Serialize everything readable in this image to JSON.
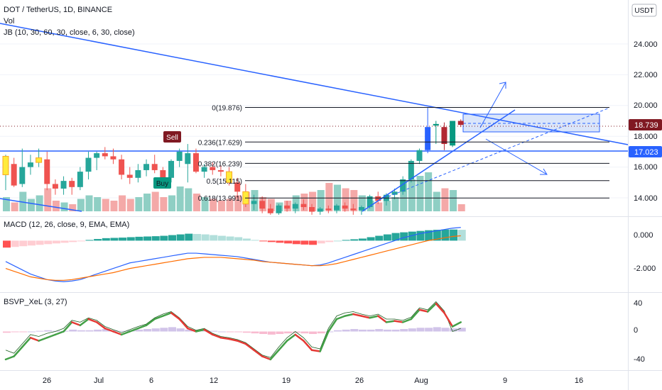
{
  "header": {
    "symbol_line": "DOT / TetherUS, 1D, BINANCE",
    "vol_label": "Vol",
    "indicator_label": "JB (10, 30, 60, 30, close, 6, 30, close)",
    "currency_button": "USDT"
  },
  "colors": {
    "up": "#26a69a",
    "down": "#ef5350",
    "up_bright": "#089981",
    "down_dark": "#b22833",
    "trend": "#2962ff",
    "macd_line": "#2962ff",
    "signal_line": "#ff6d00",
    "bsvp_green": "#43a047",
    "bsvp_red": "#e53935",
    "bsvp_thin": "#1b5e20",
    "fib": "#131722",
    "box_fill": "#bbd0f5",
    "price_label_bg": "#801922",
    "level_label_bg": "#2962ff"
  },
  "price_axis": {
    "ticks": [
      "24.000",
      "22.000",
      "20.000",
      "18.000",
      "16.000",
      "14.000"
    ],
    "current_price": "18.739",
    "level_price": "17.023"
  },
  "macd_pane": {
    "label": "MACD (12, 26, close, 9, EMA, EMA)",
    "ticks": [
      "0.000",
      "-2.000"
    ]
  },
  "bsvp_pane": {
    "label": "BSVP_XeL (3, 27)",
    "ticks": [
      "40",
      "0",
      "-40"
    ]
  },
  "time_axis": {
    "labels": [
      "26",
      "Jul",
      "6",
      "12",
      "19",
      "26",
      "Aug",
      "9",
      "16"
    ]
  },
  "fib_levels": [
    {
      "label": "0(19.876)",
      "price": 19.876
    },
    {
      "label": "0.236(17.629)",
      "price": 17.629
    },
    {
      "label": "0.382(16.239)",
      "price": 16.239
    },
    {
      "label": "0.5(15.115)",
      "price": 15.115
    },
    {
      "label": "0.618(13.991)",
      "price": 13.991
    }
  ],
  "signals": {
    "sell": "Sell",
    "buy": "Buy"
  },
  "chart_data": {
    "type": "candlestick",
    "price_range": [
      12.8,
      25.6
    ],
    "candles": [
      {
        "o": 15.5,
        "h": 16.8,
        "l": 14.5,
        "c": 16.7
      },
      {
        "o": 16.2,
        "h": 16.6,
        "l": 14.7,
        "c": 14.8
      },
      {
        "o": 14.9,
        "h": 17.2,
        "l": 14.7,
        "c": 16.0
      },
      {
        "o": 16.0,
        "h": 16.8,
        "l": 15.5,
        "c": 16.3
      },
      {
        "o": 16.3,
        "h": 17.2,
        "l": 16.0,
        "c": 16.6
      },
      {
        "o": 16.5,
        "h": 17.0,
        "l": 14.5,
        "c": 14.9
      },
      {
        "o": 14.9,
        "h": 15.2,
        "l": 14.2,
        "c": 14.6
      },
      {
        "o": 14.6,
        "h": 15.4,
        "l": 14.2,
        "c": 15.1
      },
      {
        "o": 15.1,
        "h": 15.3,
        "l": 14.2,
        "c": 14.7
      },
      {
        "o": 14.7,
        "h": 16.0,
        "l": 14.5,
        "c": 15.7
      },
      {
        "o": 15.7,
        "h": 17.0,
        "l": 15.2,
        "c": 16.6
      },
      {
        "o": 16.6,
        "h": 17.0,
        "l": 15.8,
        "c": 16.9
      },
      {
        "o": 16.9,
        "h": 17.3,
        "l": 16.5,
        "c": 16.7
      },
      {
        "o": 16.7,
        "h": 17.2,
        "l": 16.2,
        "c": 16.5
      },
      {
        "o": 16.5,
        "h": 16.8,
        "l": 15.2,
        "c": 15.5
      },
      {
        "o": 15.5,
        "h": 16.0,
        "l": 14.9,
        "c": 15.3
      },
      {
        "o": 15.3,
        "h": 16.2,
        "l": 15.0,
        "c": 15.8
      },
      {
        "o": 15.8,
        "h": 16.5,
        "l": 15.4,
        "c": 16.2
      },
      {
        "o": 16.2,
        "h": 16.8,
        "l": 15.6,
        "c": 15.8
      },
      {
        "o": 15.8,
        "h": 16.0,
        "l": 15.0,
        "c": 15.3
      },
      {
        "o": 15.3,
        "h": 16.5,
        "l": 15.0,
        "c": 16.4
      },
      {
        "o": 16.4,
        "h": 17.2,
        "l": 16.0,
        "c": 17.0
      },
      {
        "o": 16.2,
        "h": 17.5,
        "l": 15.0,
        "c": 16.9
      },
      {
        "o": 16.9,
        "h": 17.2,
        "l": 15.6,
        "c": 15.7
      },
      {
        "o": 15.7,
        "h": 16.2,
        "l": 15.3,
        "c": 16.0
      },
      {
        "o": 16.0,
        "h": 16.3,
        "l": 15.5,
        "c": 15.8
      },
      {
        "o": 15.8,
        "h": 16.1,
        "l": 15.4,
        "c": 15.7
      },
      {
        "o": 15.7,
        "h": 16.0,
        "l": 14.8,
        "c": 15.0
      },
      {
        "o": 15.0,
        "h": 15.3,
        "l": 14.0,
        "c": 14.4
      },
      {
        "o": 14.4,
        "h": 14.9,
        "l": 13.4,
        "c": 13.6
      },
      {
        "o": 13.6,
        "h": 14.2,
        "l": 13.2,
        "c": 13.8
      },
      {
        "o": 13.8,
        "h": 14.1,
        "l": 13.0,
        "c": 13.3
      },
      {
        "o": 13.3,
        "h": 13.6,
        "l": 12.9,
        "c": 13.0
      },
      {
        "o": 13.0,
        "h": 13.6,
        "l": 12.9,
        "c": 13.5
      },
      {
        "o": 13.5,
        "h": 13.8,
        "l": 13.1,
        "c": 13.3
      },
      {
        "o": 13.3,
        "h": 13.7,
        "l": 13.0,
        "c": 13.6
      },
      {
        "o": 13.6,
        "h": 13.9,
        "l": 13.2,
        "c": 13.4
      },
      {
        "o": 13.4,
        "h": 13.6,
        "l": 12.9,
        "c": 13.1
      },
      {
        "o": 13.1,
        "h": 13.4,
        "l": 12.9,
        "c": 13.3
      },
      {
        "o": 13.3,
        "h": 13.5,
        "l": 13.0,
        "c": 13.2
      },
      {
        "o": 13.2,
        "h": 13.6,
        "l": 13.0,
        "c": 13.5
      },
      {
        "o": 13.5,
        "h": 13.7,
        "l": 13.1,
        "c": 13.3
      },
      {
        "o": 13.3,
        "h": 13.6,
        "l": 12.9,
        "c": 13.2
      },
      {
        "o": 13.2,
        "h": 13.5,
        "l": 12.9,
        "c": 13.4
      },
      {
        "o": 13.4,
        "h": 14.2,
        "l": 13.3,
        "c": 14.1
      },
      {
        "o": 14.1,
        "h": 14.4,
        "l": 13.6,
        "c": 13.8
      },
      {
        "o": 13.8,
        "h": 14.3,
        "l": 13.5,
        "c": 14.2
      },
      {
        "o": 14.2,
        "h": 14.6,
        "l": 13.9,
        "c": 14.4
      },
      {
        "o": 14.4,
        "h": 15.4,
        "l": 14.2,
        "c": 15.2
      },
      {
        "o": 15.2,
        "h": 16.5,
        "l": 15.0,
        "c": 16.4
      },
      {
        "o": 16.4,
        "h": 17.2,
        "l": 16.2,
        "c": 17.1
      },
      {
        "o": 17.1,
        "h": 19.9,
        "l": 16.9,
        "c": 18.6
      },
      {
        "o": 18.7,
        "h": 19.0,
        "l": 17.5,
        "c": 18.8
      },
      {
        "o": 18.6,
        "h": 18.9,
        "l": 17.1,
        "c": 17.5
      },
      {
        "o": 17.4,
        "h": 19.0,
        "l": 17.3,
        "c": 19.0
      },
      {
        "o": 19.0,
        "h": 19.1,
        "l": 18.6,
        "c": 18.74
      }
    ],
    "volume": [
      8,
      5,
      11,
      7,
      9,
      13,
      6,
      5,
      4,
      7,
      9,
      8,
      7,
      6,
      9,
      7,
      8,
      10,
      11,
      8,
      9,
      14,
      13,
      10,
      8,
      7,
      6,
      7,
      9,
      11,
      12,
      8,
      7,
      5,
      6,
      9,
      10,
      11,
      12,
      16,
      15,
      13,
      12,
      9,
      6,
      5,
      6,
      8,
      17,
      18,
      20,
      22,
      11,
      13,
      12,
      4
    ],
    "macd_hist": [
      -0.5,
      -0.45,
      -0.4,
      -0.35,
      -0.3,
      -0.25,
      -0.2,
      -0.15,
      -0.1,
      -0.05,
      0.05,
      0.12,
      0.18,
      0.2,
      0.22,
      0.25,
      0.28,
      0.3,
      0.32,
      0.35,
      0.4,
      0.45,
      0.5,
      0.48,
      0.45,
      0.4,
      0.35,
      0.3,
      0.25,
      0.15,
      0.05,
      -0.05,
      -0.1,
      -0.15,
      -0.2,
      -0.25,
      -0.28,
      -0.3,
      -0.2,
      -0.1,
      0.0,
      0.05,
      0.1,
      0.15,
      0.25,
      0.35,
      0.45,
      0.55,
      0.6,
      0.65,
      0.7,
      0.75,
      0.78,
      0.8,
      0.8,
      0.78
    ],
    "macd_line": [
      -1.5,
      -1.8,
      -2.1,
      -2.4,
      -2.6,
      -2.8,
      -2.9,
      -2.95,
      -2.9,
      -2.8,
      -2.6,
      -2.4,
      -2.2,
      -2.0,
      -1.8,
      -1.6,
      -1.5,
      -1.4,
      -1.3,
      -1.2,
      -1.1,
      -1.0,
      -0.9,
      -0.9,
      -0.95,
      -1.0,
      -1.05,
      -1.1,
      -1.15,
      -1.25,
      -1.35,
      -1.45,
      -1.55,
      -1.6,
      -1.65,
      -1.7,
      -1.75,
      -1.8,
      -1.75,
      -1.6,
      -1.4,
      -1.2,
      -1.0,
      -0.8,
      -0.6,
      -0.4,
      -0.2,
      0.0,
      0.2,
      0.35,
      0.5,
      0.6,
      0.7,
      0.8,
      0.9,
      0.95
    ],
    "signal_line": [
      -2.0,
      -2.2,
      -2.4,
      -2.6,
      -2.7,
      -2.8,
      -2.85,
      -2.85,
      -2.8,
      -2.7,
      -2.6,
      -2.5,
      -2.4,
      -2.3,
      -2.15,
      -2.0,
      -1.9,
      -1.8,
      -1.7,
      -1.6,
      -1.5,
      -1.4,
      -1.3,
      -1.25,
      -1.2,
      -1.2,
      -1.2,
      -1.25,
      -1.3,
      -1.35,
      -1.4,
      -1.5,
      -1.55,
      -1.6,
      -1.65,
      -1.7,
      -1.75,
      -1.8,
      -1.8,
      -1.75,
      -1.65,
      -1.5,
      -1.35,
      -1.2,
      -1.05,
      -0.9,
      -0.75,
      -0.6,
      -0.45,
      -0.3,
      -0.15,
      0.0,
      0.1,
      0.2,
      0.3,
      0.35
    ],
    "bsvp_main": [
      -45,
      -40,
      -25,
      -10,
      -15,
      -10,
      -5,
      0,
      15,
      10,
      20,
      15,
      5,
      0,
      -5,
      0,
      5,
      10,
      20,
      25,
      30,
      20,
      5,
      0,
      3,
      -5,
      -10,
      -12,
      -15,
      -20,
      -30,
      -40,
      -45,
      -30,
      -15,
      -5,
      -15,
      -30,
      -32,
      0,
      20,
      25,
      28,
      25,
      22,
      25,
      15,
      17,
      15,
      20,
      35,
      32,
      45,
      30,
      8,
      15
    ],
    "bsvp_signal": [
      -30,
      -35,
      -20,
      -5,
      -8,
      -3,
      0,
      5,
      18,
      15,
      22,
      18,
      8,
      3,
      -2,
      3,
      8,
      12,
      22,
      28,
      32,
      22,
      8,
      2,
      5,
      -3,
      -8,
      -10,
      -13,
      -18,
      -28,
      -38,
      -42,
      -25,
      -10,
      0,
      -10,
      -25,
      -28,
      5,
      25,
      30,
      32,
      28,
      25,
      28,
      20,
      20,
      18,
      23,
      38,
      35,
      48,
      33,
      0,
      5
    ],
    "bsvp_hist": [
      -2,
      -1,
      -1,
      0,
      1,
      2,
      1,
      1,
      3,
      2,
      2,
      3,
      4,
      2,
      1,
      2,
      3,
      4,
      5,
      6,
      7,
      5,
      3,
      2,
      2,
      1,
      0,
      -1,
      -1,
      -2,
      -3,
      -4,
      -5,
      -4,
      -3,
      -2,
      -3,
      -4,
      -3,
      0,
      2,
      3,
      4,
      3,
      3,
      4,
      3,
      3,
      4,
      5,
      6,
      6,
      7,
      6,
      5,
      6
    ],
    "bsvp_range": [
      -60,
      60
    ],
    "macd_range": [
      -3.6,
      1.6
    ]
  }
}
